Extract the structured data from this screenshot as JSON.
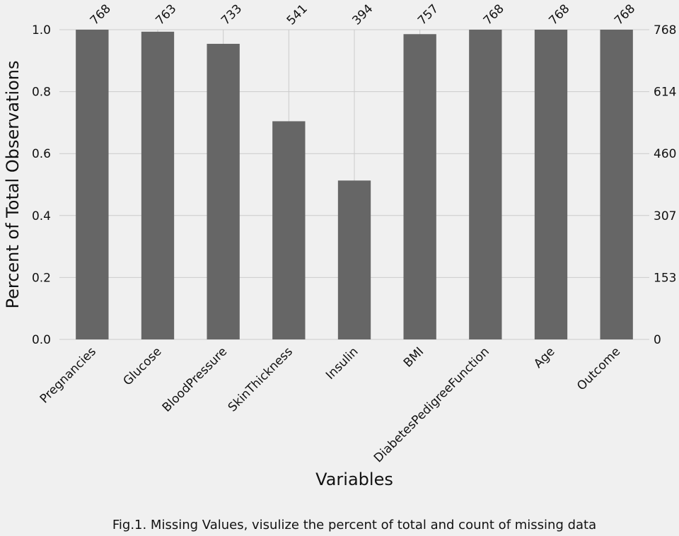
{
  "chart_data": {
    "type": "bar",
    "categories": [
      "Pregnancies",
      "Glucose",
      "BloodPressure",
      "SkinThickness",
      "Insulin",
      "BMI",
      "DiabetesPedigreeFunction",
      "Age",
      "Outcome"
    ],
    "counts": [
      768,
      763,
      733,
      541,
      394,
      757,
      768,
      768,
      768
    ],
    "total": 768,
    "values": [
      1.0,
      0.9935,
      0.9544,
      0.7044,
      0.513,
      0.9857,
      1.0,
      1.0,
      1.0
    ],
    "ylim": [
      0,
      1.0
    ],
    "y_ticks": [
      "0.0",
      "0.2",
      "0.4",
      "0.6",
      "0.8",
      "1.0"
    ],
    "y2_ticks": [
      "0",
      "153",
      "307",
      "460",
      "614",
      "768"
    ],
    "xlabel": "Variables",
    "ylabel": "Percent of Total Observations",
    "grid": true,
    "bar_color": "#666666",
    "background": "#f0f0f0",
    "grid_color": "#cbcbcb"
  },
  "caption": "Fig.1. Missing Values, visulize the percent of total and count of missing data"
}
